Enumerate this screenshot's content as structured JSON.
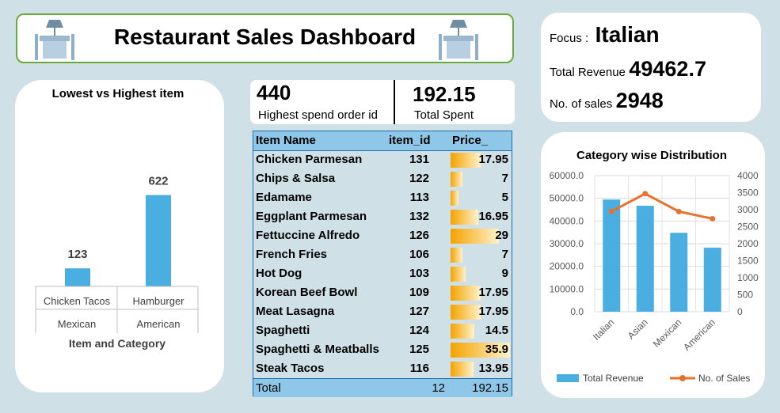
{
  "title": "Restaurant Sales Dashboard",
  "focus": {
    "label": "Focus :",
    "value": "Italian",
    "revenue_label": "Total Revenue",
    "revenue_value": "49462.7",
    "sales_label": "No. of sales",
    "sales_value": "2948"
  },
  "kpis": {
    "order_id_value": "440",
    "order_id_label": "Highest spend order id",
    "spent_value": "192.15",
    "spent_label": "Total Spent"
  },
  "table": {
    "headers": [
      "Item Name",
      "item_id",
      "Price_"
    ],
    "rows": [
      {
        "name": "Chicken Parmesan",
        "id": "131",
        "price": "17.95",
        "price_num": 17.95
      },
      {
        "name": "Chips & Salsa",
        "id": "122",
        "price": "7",
        "price_num": 7
      },
      {
        "name": "Edamame",
        "id": "113",
        "price": "5",
        "price_num": 5
      },
      {
        "name": "Eggplant Parmesan",
        "id": "132",
        "price": "16.95",
        "price_num": 16.95
      },
      {
        "name": "Fettuccine Alfredo",
        "id": "126",
        "price": "29",
        "price_num": 29
      },
      {
        "name": "French Fries",
        "id": "106",
        "price": "7",
        "price_num": 7
      },
      {
        "name": "Hot Dog",
        "id": "103",
        "price": "9",
        "price_num": 9
      },
      {
        "name": "Korean Beef Bowl",
        "id": "109",
        "price": "17.95",
        "price_num": 17.95
      },
      {
        "name": "Meat Lasagna",
        "id": "127",
        "price": "17.95",
        "price_num": 17.95
      },
      {
        "name": "Spaghetti",
        "id": "124",
        "price": "14.5",
        "price_num": 14.5
      },
      {
        "name": "Spaghetti & Meatballs",
        "id": "125",
        "price": "35.9",
        "price_num": 35.9
      },
      {
        "name": "Steak Tacos",
        "id": "116",
        "price": "13.95",
        "price_num": 13.95
      }
    ],
    "total": {
      "label": "Total",
      "count": "12",
      "sum": "192.15"
    }
  },
  "chart_data": [
    {
      "type": "bar",
      "title": "Lowest vs Highest item",
      "xlabel": "Item and Category",
      "categories": [
        "Chicken Tacos",
        "Hamburger"
      ],
      "groups": [
        "Mexican",
        "American"
      ],
      "values": [
        123,
        622
      ],
      "data_labels": [
        "123",
        "622"
      ],
      "ylim": [
        0,
        700
      ],
      "bar_color": "#4aaee0"
    },
    {
      "type": "bar",
      "title": "Category wise Distribution",
      "categories": [
        "Italian",
        "Asian",
        "Mexican",
        "American"
      ],
      "series": [
        {
          "name": "Total Revenue",
          "type": "bar",
          "axis": "left",
          "values": [
            49462.7,
            46720.65,
            34796.8,
            28237.75
          ],
          "color": "#4aaee0"
        },
        {
          "name": "No. of Sales",
          "type": "line",
          "axis": "right",
          "values": [
            2948,
            3470,
            2945,
            2734
          ],
          "color": "#e8712b"
        }
      ],
      "left_ticks": [
        "0.0",
        "10000.0",
        "20000.0",
        "30000.0",
        "40000.0",
        "50000.0",
        "60000.0"
      ],
      "right_ticks": [
        "0",
        "500",
        "1000",
        "1500",
        "2000",
        "2500",
        "3000",
        "3500",
        "4000"
      ],
      "ylim_left": [
        0,
        60000
      ],
      "ylim_right": [
        0,
        4000
      ],
      "legend_position": "bottom"
    }
  ],
  "colors": {
    "background": "#cfe1e6",
    "title_border": "#6aaa3c",
    "bar": "#4aaee0",
    "line": "#e8712b",
    "table_border": "#1c6fb0",
    "data_bar": "#f4a300"
  },
  "icons": [
    "dining-table-icon"
  ]
}
